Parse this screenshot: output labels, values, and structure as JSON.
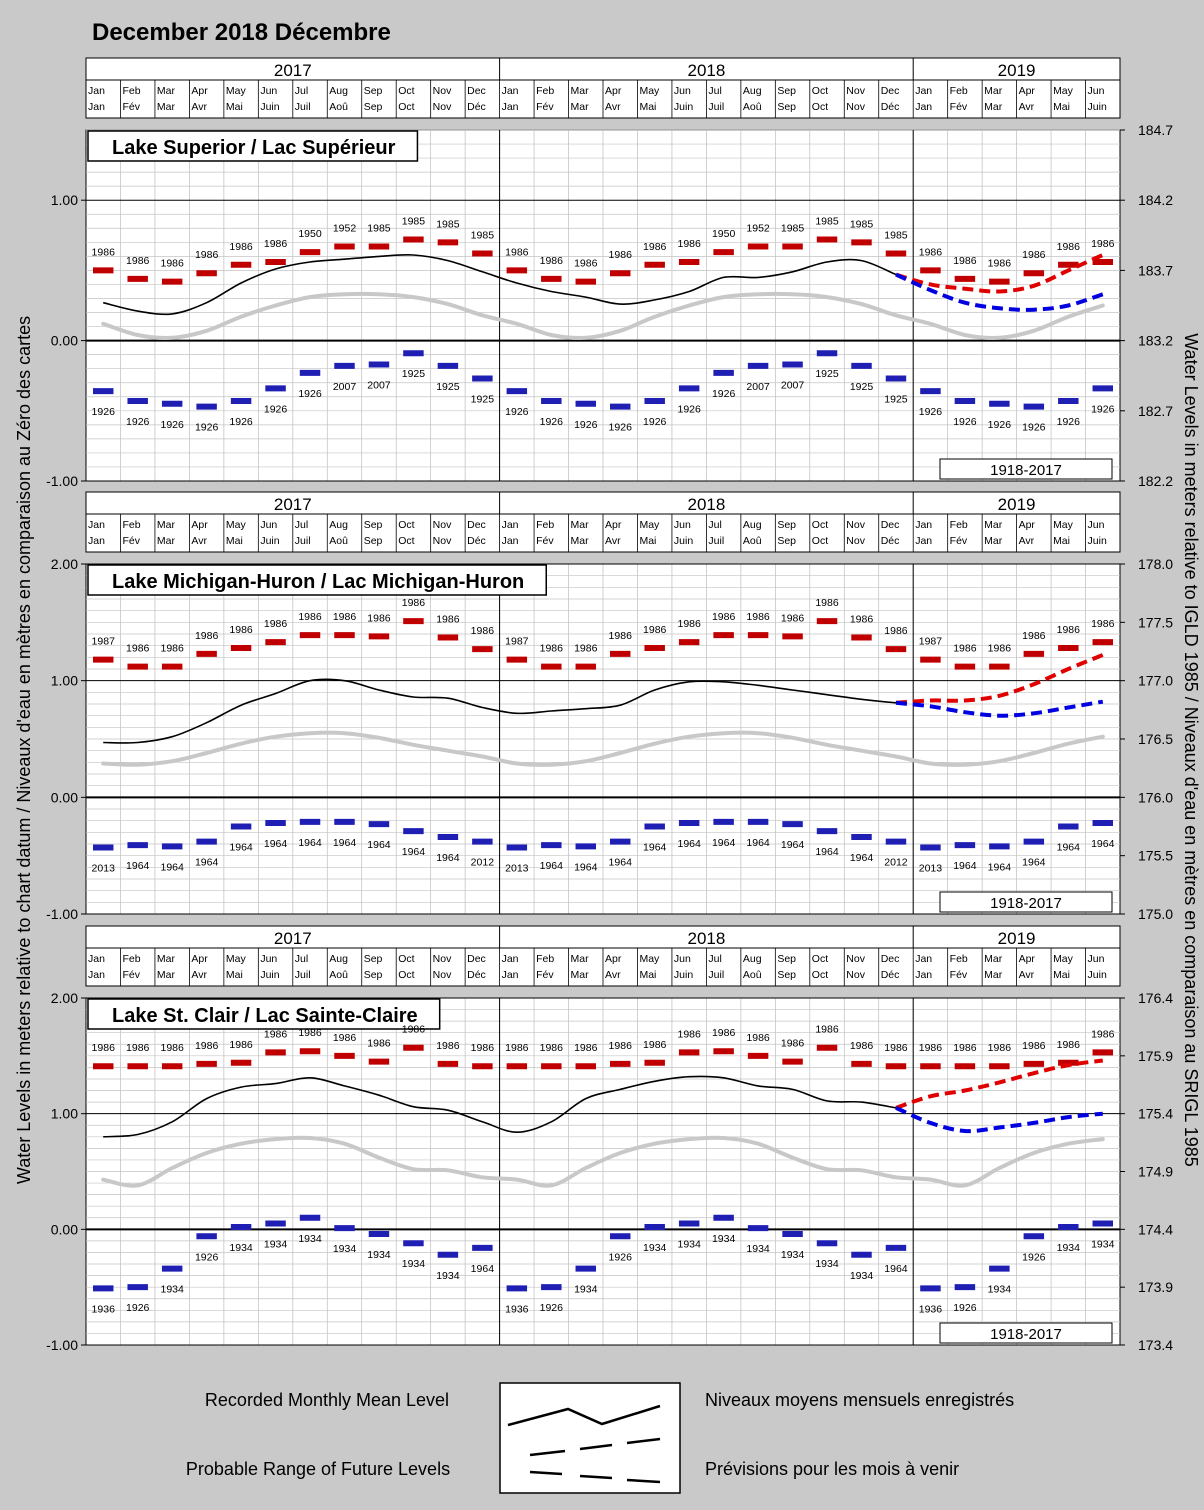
{
  "title": "December 2018 Décembre",
  "left_axis_label": "Water Levels in meters relative to chart datum / Niveaux d'eau en mètres en comparaison au Zéro des cartes",
  "right_axis_label": "Water Levels in meters relative to IGLD 1985 / Niveaux d'eau en mètres en comparaison au SRIGL 1985",
  "years": [
    "2017",
    "2018",
    "2019"
  ],
  "months_en": [
    "Jan",
    "Feb",
    "Mar",
    "Apr",
    "May",
    "Jun",
    "Jul",
    "Aug",
    "Sep",
    "Oct",
    "Nov",
    "Dec",
    "Jan",
    "Feb",
    "Mar",
    "Apr",
    "May",
    "Jun",
    "Jul",
    "Aug",
    "Sep",
    "Oct",
    "Nov",
    "Dec",
    "Jan",
    "Feb",
    "Mar",
    "Apr",
    "May",
    "Jun"
  ],
  "months_fr": [
    "Jan",
    "Fév",
    "Mar",
    "Avr",
    "Mai",
    "Juin",
    "Juil",
    "Aoû",
    "Sep",
    "Oct",
    "Nov",
    "Déc",
    "Jan",
    "Fév",
    "Mar",
    "Avr",
    "Mai",
    "Juin",
    "Juil",
    "Aoû",
    "Sep",
    "Oct",
    "Nov",
    "Déc",
    "Jan",
    "Fév",
    "Mar",
    "Avr",
    "Mai",
    "Juin"
  ],
  "period_label": "1918-2017",
  "legend": {
    "recorded_en": "Recorded Monthly  Mean Level",
    "recorded_fr": "Niveaux moyens mensuels enregistrés",
    "forecast_en": "Probable Range of Future Levels",
    "forecast_fr": "Prévisions pour les mois à venir"
  },
  "colors": {
    "max_marker": "#c00000",
    "min_marker": "#1f1fb4",
    "forecast_high": "#e00000",
    "forecast_low": "#0000e0",
    "recorded": "#000000",
    "average": "#c8c8c8",
    "background": "#c9c9c9"
  },
  "chart_data": [
    {
      "type": "line",
      "lake": "Lake Superior / Lac Supérieur",
      "ylim": [
        -1.0,
        1.5
      ],
      "yticks": [
        "1.00",
        "0.00",
        "-1.00"
      ],
      "ytick_values": [
        1.0,
        0.0,
        -1.0
      ],
      "right_ylim": [
        182.2,
        184.7
      ],
      "right_ticks": [
        "184.7",
        "184.2",
        "183.7",
        "183.2",
        "182.7",
        "182.2"
      ],
      "right_tick_values": [
        1.5,
        1.0,
        0.5,
        0.0,
        -0.5,
        -1.0
      ],
      "max_values": [
        0.5,
        0.44,
        0.42,
        0.48,
        0.54,
        0.56,
        0.63,
        0.67,
        0.67,
        0.72,
        0.7,
        0.62
      ],
      "max_years": [
        "1986",
        "1986",
        "1986",
        "1986",
        "1986",
        "1986",
        "1950",
        "1952",
        "1985",
        "1985",
        "1985",
        "1985"
      ],
      "min_values": [
        -0.36,
        -0.43,
        -0.45,
        -0.47,
        -0.43,
        -0.34,
        -0.23,
        -0.18,
        -0.17,
        -0.09,
        -0.18,
        -0.27
      ],
      "min_years": [
        "1926",
        "1926",
        "1926",
        "1926",
        "1926",
        "1926",
        "1926",
        "2007",
        "2007",
        "1925",
        "1925",
        "1925"
      ],
      "average": [
        0.12,
        0.04,
        0.02,
        0.07,
        0.17,
        0.25,
        0.31,
        0.33,
        0.33,
        0.31,
        0.26,
        0.18
      ],
      "recorded": [
        0.27,
        0.21,
        0.19,
        0.27,
        0.41,
        0.51,
        0.56,
        0.58,
        0.6,
        0.61,
        0.57,
        0.49,
        0.41,
        0.35,
        0.31,
        0.26,
        0.29,
        0.35,
        0.45,
        0.45,
        0.49,
        0.56,
        0.57,
        0.47
      ],
      "forecast_high": [
        0.4,
        0.37,
        0.35,
        0.39,
        0.5,
        0.61
      ],
      "forecast_low": [
        0.36,
        0.27,
        0.23,
        0.22,
        0.25,
        0.33
      ]
    },
    {
      "type": "line",
      "lake": "Lake Michigan-Huron / Lac Michigan-Huron",
      "ylim": [
        -1.0,
        2.0
      ],
      "yticks": [
        "2.00",
        "1.00",
        "0.00",
        "-1.00"
      ],
      "ytick_values": [
        2.0,
        1.0,
        0.0,
        -1.0
      ],
      "right_ylim": [
        175.0,
        178.0
      ],
      "right_ticks": [
        "178.0",
        "177.5",
        "177.0",
        "176.5",
        "176.0",
        "175.5",
        "175.0"
      ],
      "right_tick_values": [
        2.0,
        1.5,
        1.0,
        0.5,
        0.0,
        -0.5,
        -1.0
      ],
      "max_values": [
        1.18,
        1.12,
        1.12,
        1.23,
        1.28,
        1.33,
        1.39,
        1.39,
        1.38,
        1.51,
        1.37,
        1.27
      ],
      "max_years": [
        "1987",
        "1986",
        "1986",
        "1986",
        "1986",
        "1986",
        "1986",
        "1986",
        "1986",
        "1986",
        "1986",
        "1986"
      ],
      "min_values": [
        -0.43,
        -0.41,
        -0.42,
        -0.38,
        -0.25,
        -0.22,
        -0.21,
        -0.21,
        -0.23,
        -0.29,
        -0.34,
        -0.38
      ],
      "min_years": [
        "2013",
        "1964",
        "1964",
        "1964",
        "1964",
        "1964",
        "1964",
        "1964",
        "1964",
        "1964",
        "1964",
        "2012"
      ],
      "average": [
        0.29,
        0.28,
        0.31,
        0.38,
        0.46,
        0.52,
        0.55,
        0.55,
        0.51,
        0.45,
        0.4,
        0.35
      ],
      "recorded": [
        0.47,
        0.47,
        0.52,
        0.64,
        0.79,
        0.89,
        1.0,
        1.0,
        0.92,
        0.86,
        0.85,
        0.77,
        0.72,
        0.74,
        0.76,
        0.79,
        0.92,
        0.99,
        0.99,
        0.96,
        0.92,
        0.88,
        0.84,
        0.81
      ],
      "forecast_high": [
        0.83,
        0.83,
        0.87,
        0.97,
        1.1,
        1.22
      ],
      "forecast_low": [
        0.78,
        0.73,
        0.7,
        0.72,
        0.77,
        0.82
      ]
    },
    {
      "type": "line",
      "lake": "Lake St. Clair / Lac Sainte-Claire",
      "ylim": [
        -1.0,
        2.0
      ],
      "yticks": [
        "2.00",
        "1.00",
        "0.00",
        "-1.00"
      ],
      "ytick_values": [
        2.0,
        1.0,
        0.0,
        -1.0
      ],
      "right_ylim": [
        173.4,
        176.4
      ],
      "right_ticks": [
        "176.4",
        "175.9",
        "175.4",
        "174.9",
        "174.4",
        "173.9",
        "173.4"
      ],
      "right_tick_values": [
        2.0,
        1.5,
        1.0,
        0.5,
        0.0,
        -0.5,
        -1.0
      ],
      "max_values": [
        1.41,
        1.41,
        1.41,
        1.43,
        1.44,
        1.53,
        1.54,
        1.5,
        1.45,
        1.57,
        1.43,
        1.41
      ],
      "max_years": [
        "1986",
        "1986",
        "1986",
        "1986",
        "1986",
        "1986",
        "1986",
        "1986",
        "1986",
        "1986",
        "1986",
        "1986"
      ],
      "min_values": [
        -0.51,
        -0.5,
        -0.34,
        -0.06,
        0.02,
        0.05,
        0.1,
        0.01,
        -0.04,
        -0.12,
        -0.22,
        -0.16
      ],
      "min_years": [
        "1936",
        "1926",
        "1934",
        "1926",
        "1934",
        "1934",
        "1934",
        "1934",
        "1934",
        "1934",
        "1934",
        "1964"
      ],
      "average": [
        0.43,
        0.38,
        0.53,
        0.66,
        0.74,
        0.78,
        0.79,
        0.74,
        0.62,
        0.52,
        0.51,
        0.45
      ],
      "recorded": [
        0.8,
        0.82,
        0.93,
        1.13,
        1.23,
        1.26,
        1.31,
        1.24,
        1.16,
        1.06,
        1.03,
        0.93,
        0.84,
        0.93,
        1.13,
        1.21,
        1.28,
        1.32,
        1.31,
        1.24,
        1.21,
        1.11,
        1.1,
        1.05
      ],
      "forecast_high": [
        1.15,
        1.2,
        1.27,
        1.35,
        1.42,
        1.46
      ],
      "forecast_low": [
        0.92,
        0.85,
        0.88,
        0.92,
        0.97,
        1.0
      ]
    }
  ]
}
